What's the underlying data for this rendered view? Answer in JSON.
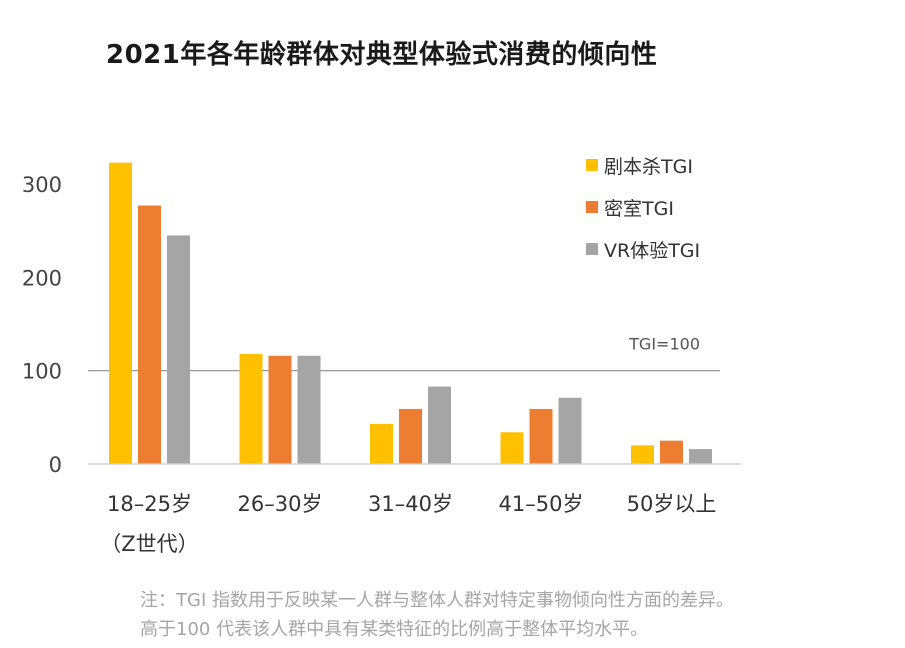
{
  "title": "2021年各年龄群体对典型体验式消费的倾向性",
  "note_lines": [
    "注：TGI 指数用于反映某一人群与整体人群对特定事物倾向性方面的差异。",
    "高于100 代表该人群中具有某类特征的比例高于整体平均水平。"
  ],
  "chart_data": {
    "type": "bar",
    "title": "2021年各年龄群体对典型体验式消费的倾向性",
    "categories": [
      [
        "18–25岁",
        "（Z世代）"
      ],
      [
        "26–30岁"
      ],
      [
        "31–40岁"
      ],
      [
        "41–50岁"
      ],
      [
        "50岁以上"
      ]
    ],
    "series": [
      {
        "name": "剧本杀TGI",
        "color": "#ffc000",
        "values": [
          323,
          118,
          43,
          34,
          20
        ]
      },
      {
        "name": "密室TGI",
        "color": "#ed7d31",
        "values": [
          277,
          116,
          59,
          59,
          25
        ]
      },
      {
        "name": "VR体验TGI",
        "color": "#a5a5a5",
        "values": [
          245,
          116,
          83,
          71,
          16
        ]
      }
    ],
    "yticks": [
      "0",
      "100",
      "200",
      "300"
    ],
    "ylim": [
      0,
      300
    ],
    "reference_line": {
      "value": 100,
      "label": "TGI=100"
    },
    "grid": false,
    "legend": "top-right"
  }
}
